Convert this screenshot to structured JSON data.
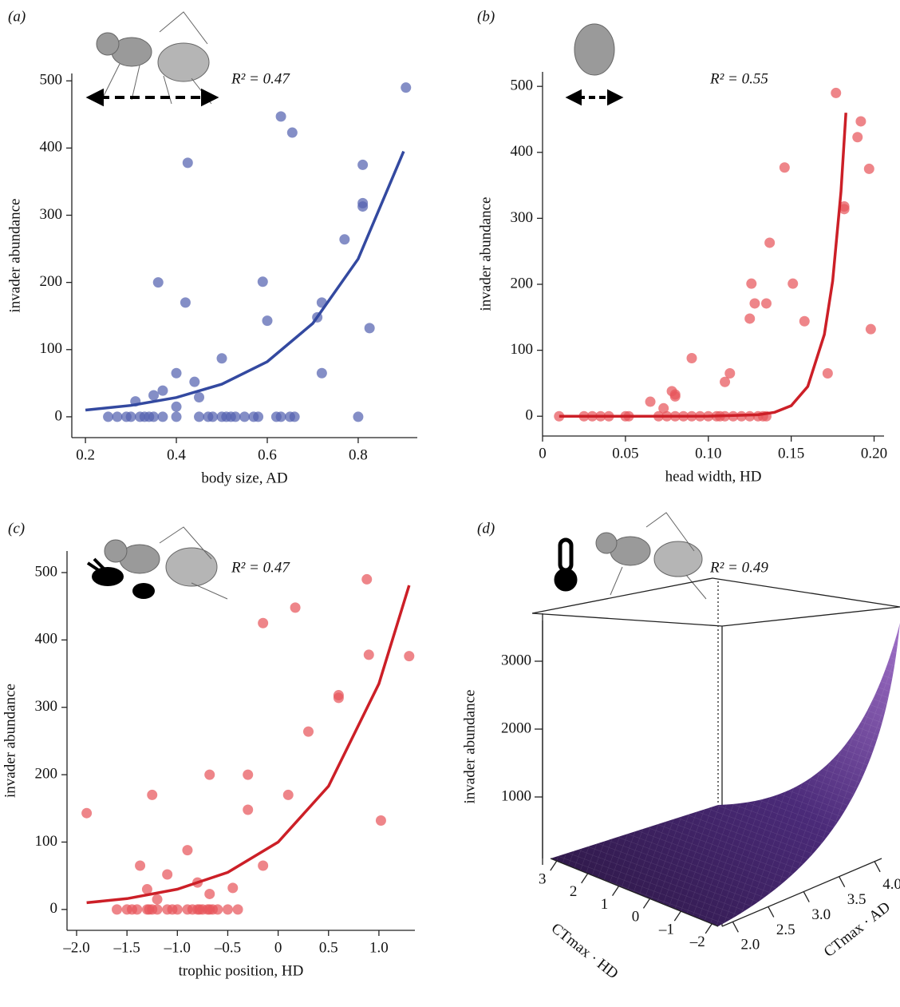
{
  "chart_data": [
    {
      "type": "scatter",
      "title": "(a)",
      "annotation": "R² = 0.47",
      "xlabel": "body size, AD",
      "ylabel": "invader abundance",
      "xlim": [
        0.17,
        0.93
      ],
      "ylim": [
        -31,
        511
      ],
      "xticks": [
        0.2,
        0.4,
        0.6,
        0.8
      ],
      "yticks": [
        0,
        100,
        200,
        300,
        400,
        500
      ],
      "color": "#5563b0",
      "fit_color": "#3349a0",
      "points": {
        "x": [
          0.25,
          0.27,
          0.29,
          0.3,
          0.32,
          0.33,
          0.34,
          0.35,
          0.37,
          0.4,
          0.45,
          0.47,
          0.48,
          0.5,
          0.51,
          0.52,
          0.53,
          0.55,
          0.57,
          0.58,
          0.62,
          0.63,
          0.65,
          0.66,
          0.8,
          0.31,
          0.35,
          0.37,
          0.4,
          0.4,
          0.44,
          0.45,
          0.36,
          0.42,
          0.425,
          0.5,
          0.59,
          0.6,
          0.63,
          0.655,
          0.71,
          0.72,
          0.72,
          0.77,
          0.81,
          0.81,
          0.81,
          0.825,
          0.905
        ],
        "y": [
          0,
          0,
          0,
          0,
          0,
          0,
          0,
          0,
          0,
          0,
          0,
          0,
          0,
          0,
          0,
          0,
          0,
          0,
          0,
          0,
          0,
          0,
          0,
          0,
          0,
          23,
          32,
          39,
          15,
          65,
          52,
          29,
          200,
          170,
          378,
          87,
          201,
          143,
          447,
          423,
          148,
          170,
          65,
          264,
          375,
          318,
          313,
          132,
          490
        ]
      },
      "fit": {
        "x": [
          0.2,
          0.3,
          0.4,
          0.5,
          0.6,
          0.7,
          0.8,
          0.9
        ],
        "y": [
          10,
          16.9,
          28.7,
          48.5,
          82,
          139,
          235,
          395
        ]
      }
    },
    {
      "type": "scatter",
      "title": "(b)",
      "annotation": "R² = 0.55",
      "xlabel": "head width, HD",
      "ylabel": "invader abundance",
      "xlim": [
        0,
        0.206
      ],
      "ylim": [
        -30,
        522
      ],
      "xticks": [
        0,
        0.05,
        {
          "value": 0.1,
          "label": "0.10"
        },
        0.15,
        {
          "value": 0.2,
          "label": "0.20"
        }
      ],
      "yticks": [
        0,
        100,
        200,
        300,
        400,
        500
      ],
      "color": "#e8565c",
      "fit_color": "#cc1f27",
      "points": {
        "x": [
          0.01,
          0.025,
          0.03,
          0.035,
          0.04,
          0.05,
          0.052,
          0.07,
          0.075,
          0.08,
          0.085,
          0.09,
          0.095,
          0.1,
          0.105,
          0.107,
          0.11,
          0.115,
          0.12,
          0.125,
          0.13,
          0.133,
          0.135,
          0.065,
          0.073,
          0.078,
          0.08,
          0.08,
          0.09,
          0.11,
          0.113,
          0.125,
          0.126,
          0.128,
          0.135,
          0.137,
          0.146,
          0.151,
          0.158,
          0.172,
          0.177,
          0.182,
          0.182,
          0.19,
          0.192,
          0.197,
          0.198
        ],
        "y": [
          0,
          0,
          0,
          0,
          0,
          0,
          0,
          0,
          0,
          0,
          0,
          0,
          0,
          0,
          0,
          0,
          0,
          0,
          0,
          0,
          0,
          0,
          0,
          22,
          12,
          38,
          30,
          33,
          88,
          52,
          65,
          148,
          201,
          171,
          171,
          263,
          377,
          201,
          144,
          65,
          490,
          318,
          314,
          423,
          447,
          375,
          132
        ]
      },
      "fit": {
        "x": [
          0.01,
          0.05,
          0.1,
          0.13,
          0.14,
          0.15,
          0.16,
          0.17,
          0.175,
          0.18,
          0.183
        ],
        "y": [
          0,
          0,
          0.1,
          2.2,
          6,
          16,
          45,
          124,
          205,
          340,
          460
        ]
      }
    },
    {
      "type": "scatter",
      "title": "(c)",
      "annotation": "R² = 0.47",
      "xlabel": "trophic position, HD",
      "ylabel": "invader abundance",
      "xlim": [
        -2.095,
        1.357
      ],
      "ylim": [
        -31,
        532
      ],
      "xticks": [
        {
          "value": -2,
          "label": "–2.0"
        },
        {
          "value": -1.5,
          "label": "–1.5"
        },
        {
          "value": -1,
          "label": "–1.0"
        },
        {
          "value": -0.5,
          "label": "–0.5"
        },
        0,
        0.5,
        {
          "value": 1,
          "label": "1.0"
        }
      ],
      "yticks": [
        0,
        100,
        200,
        300,
        400,
        500
      ],
      "color": "#e8565c",
      "fit_color": "#cc1f27",
      "points": {
        "x": [
          -1.6,
          -1.5,
          -1.45,
          -1.4,
          -1.3,
          -1.28,
          -1.25,
          -1.2,
          -1.1,
          -1.05,
          -1,
          -0.9,
          -0.85,
          -0.8,
          -0.78,
          -0.75,
          -0.7,
          -0.68,
          -0.65,
          -0.6,
          -0.5,
          -0.4,
          -1.9,
          -1.37,
          -1.3,
          -1.25,
          -1.2,
          -1.1,
          -0.9,
          -0.8,
          -0.68,
          -0.68,
          -0.45,
          -0.3,
          -0.3,
          -0.15,
          -0.15,
          0.1,
          0.17,
          0.3,
          0.6,
          0.6,
          0.88,
          0.9,
          1.02,
          1.3
        ],
        "y": [
          0,
          0,
          0,
          0,
          0,
          0,
          0,
          0,
          0,
          0,
          0,
          0,
          0,
          0,
          0,
          0,
          0,
          0,
          0,
          0,
          0,
          0,
          143,
          65,
          30,
          170,
          15,
          52,
          88,
          40,
          23,
          200,
          32,
          148,
          200,
          65,
          425,
          170,
          448,
          264,
          318,
          314,
          490,
          378,
          132,
          376
        ]
      },
      "fit": {
        "x": [
          -1.9,
          -1.5,
          -1,
          -0.5,
          0,
          0.5,
          1,
          1.3
        ],
        "y": [
          10,
          16,
          30,
          55,
          100,
          183,
          335,
          481
        ]
      }
    },
    {
      "type": "surface",
      "title": "(d)",
      "annotation": "R² = 0.49",
      "zlabel": "invader abundance",
      "zlim": [
        0,
        3600
      ],
      "zticks": [
        1000,
        2000,
        3000
      ],
      "xlabel": "CTmax · AD",
      "xlim": [
        1.85,
        4.1
      ],
      "xticks": [
        {
          "value": 2,
          "label": "2.0"
        },
        {
          "value": 2.5,
          "label": "2.5"
        },
        {
          "value": 3,
          "label": "3.0"
        },
        {
          "value": 3.5,
          "label": "3.5"
        },
        {
          "value": 4,
          "label": "4.0"
        }
      ],
      "ylabel": "CTmax · HD",
      "ylim": [
        -2.2,
        3.2
      ],
      "yticks": [
        {
          "value": -2,
          "label": "–2"
        },
        {
          "value": -1,
          "label": "–1"
        },
        0,
        1,
        2,
        3
      ]
    }
  ]
}
